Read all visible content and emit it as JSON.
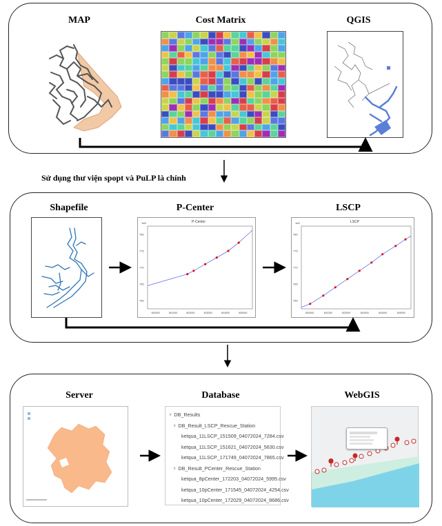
{
  "row1": {
    "map_title": "MAP",
    "cost_matrix_title": "Cost Matrix",
    "qgis_title": "QGIS"
  },
  "caption_libraries": "Sử dụng thư viện spopt và PuLP là chính",
  "row2": {
    "shapefile_title": "Shapefile",
    "pcenter_title": "P-Center",
    "lscp_title": "LSCP",
    "pcenter_plot": {
      "plot_title": "P-Center",
      "y_scale": "1e6",
      "y_ticks": [
        "760",
        "765",
        "770",
        "775",
        "780"
      ],
      "x_ticks": [
        "600000",
        "601000",
        "602000",
        "603000",
        "604000",
        "605000"
      ]
    },
    "lscp_plot": {
      "plot_title": "LSCP",
      "y_scale": "1e6",
      "y_ticks": [
        "760",
        "765",
        "770",
        "775",
        "780"
      ],
      "x_ticks": [
        "600000",
        "601000",
        "602000",
        "603000",
        "604000",
        "605000"
      ]
    }
  },
  "row3": {
    "server_title": "Server",
    "database_title": "Database",
    "webgis_title": "WebGIS",
    "db_tree": {
      "root": "DB_Results",
      "lscp_folder": "DB_Result_LSCP_Rescue_Station",
      "lscp_files": [
        "ketqua_11LSCP_151509_04072024_7284.csv",
        "ketqua_11LSCP_151621_04072024_5630.csv",
        "ketqua_11LSCP_171749_04072024_7865.csv"
      ],
      "pcenter_folder": "DB_Result_PCenter_Rescue_Station",
      "pcenter_files": [
        "ketqua_8pCenter_172203_04072024_5995.csv",
        "ketqua_10pCenter_171545_04072024_4254.csv",
        "ketqua_10pCenter_172029_04072024_8686.csv"
      ]
    }
  },
  "colors": {
    "matrix_palette": [
      "#3b4cc0",
      "#5a78e0",
      "#4fa3e8",
      "#47c7d6",
      "#59d49a",
      "#8ed45f",
      "#c9d44e",
      "#f0c14a",
      "#f19048",
      "#e8604a",
      "#d63f4a",
      "#9c2fb5"
    ],
    "map_fill": "#f2c9a5",
    "route_gray": "#555555",
    "qgis_blue": "#5b7fd6",
    "shapefile_blue": "#2b74b6",
    "server_fill": "#f9b98a",
    "webgis_green": "#cdeee0",
    "webgis_cyan": "#7fd3e8",
    "marker_red": "#c62828"
  },
  "icons": {
    "arrow": "right-arrow-icon",
    "map_marker": "map-marker-icon",
    "folder": "folder-icon",
    "csv_file": "csv-file-icon"
  }
}
